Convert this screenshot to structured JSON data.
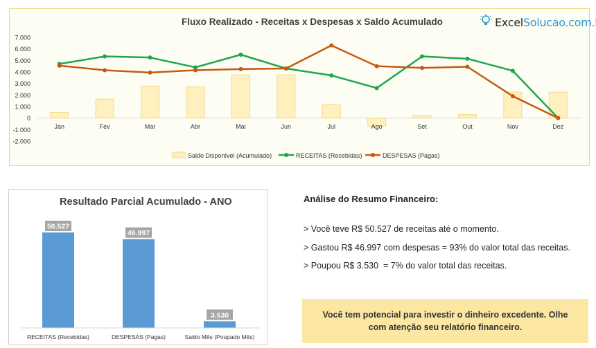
{
  "brand": {
    "logo_prefix": "Excel",
    "logo_suffix": "Solucao.com.br",
    "accent": "#2e9ad0"
  },
  "analysis": {
    "title": "Análise do Resumo Financeiro:",
    "line1": "> Você teve R$ 50.527 de receitas até o momento.",
    "line2": "> Gastou R$ 46.997 com despesas = 93% do valor total das receitas.",
    "line3": "> Poupou R$ 3.530  = 7% do valor total das receitas.",
    "callout": "Você tem potencial para investir o dinheiro excedente. Olhe com atenção seu relatório financeiro."
  },
  "chart_data": [
    {
      "type": "bar",
      "title": "Fluxo Realizado - Receitas x Despesas x Saldo Acumulado",
      "categories": [
        "Jan",
        "Fev",
        "Mar",
        "Abr",
        "Mai",
        "Jun",
        "Jul",
        "Ago",
        "Set",
        "Out",
        "Nov",
        "Dez"
      ],
      "ylim": [
        -2000,
        7000
      ],
      "yticks": [
        "-2.000",
        "-1.000",
        "0",
        "1.000",
        "2.000",
        "3.000",
        "4.000",
        "5.000",
        "6.000",
        "7.000"
      ],
      "grid": false,
      "legend_position": "bottom",
      "series": [
        {
          "name": "Saldo Disponível (Acumulado)",
          "type": "bar",
          "color": "#fff0c0",
          "stroke": "#f2d98b",
          "values": [
            500,
            1650,
            2780,
            2700,
            3750,
            3750,
            1180,
            -700,
            220,
            300,
            2250,
            2250
          ]
        },
        {
          "name": "RECEITAS (Recebidas)",
          "type": "line",
          "color": "#1fa64a",
          "values": [
            4700,
            5350,
            5250,
            4400,
            5500,
            4300,
            3700,
            2600,
            5350,
            5150,
            4100,
            0
          ]
        },
        {
          "name": "DESPESAS (Pagas)",
          "type": "line",
          "color": "#c55a11",
          "values": [
            4550,
            4150,
            3950,
            4150,
            4250,
            4300,
            6300,
            4500,
            4350,
            4450,
            1900,
            0
          ]
        }
      ]
    },
    {
      "type": "bar",
      "title": "Resultado Parcial Acumulado - ANO",
      "categories": [
        "RECEITAS (Recebidas)",
        "DESPESAS (Pagas)",
        "Saldo Mês (Poupado Mês)"
      ],
      "values": [
        50527,
        46997,
        3530
      ],
      "value_labels": [
        "50.527",
        "46.997",
        "3.530"
      ],
      "color": "#5b9bd5",
      "label_bg": "#a6a6a6"
    }
  ]
}
